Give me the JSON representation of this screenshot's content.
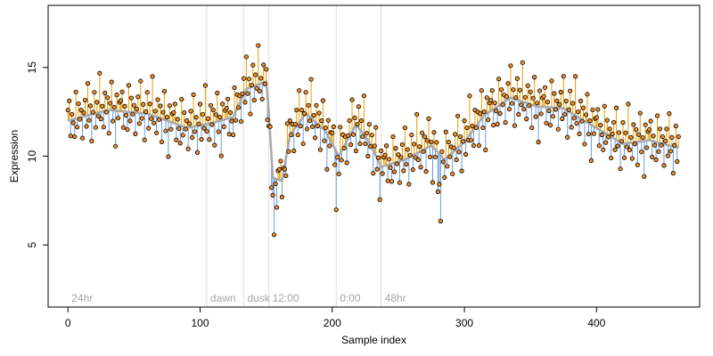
{
  "chart_data": {
    "type": "scatter",
    "title": "",
    "xlabel": "Sample index",
    "ylabel": "Expression",
    "xlim": [
      -15,
      478
    ],
    "ylim": [
      1.5,
      18.5
    ],
    "x_ticks": [
      0,
      100,
      200,
      300,
      400
    ],
    "x_tick_labels": [
      "0",
      "100",
      "200",
      "300",
      "400"
    ],
    "y_ticks": [
      5,
      10,
      15
    ],
    "y_tick_labels": [
      "5",
      "10",
      "15"
    ],
    "grid": false,
    "legend": "none",
    "phase_markers": [
      {
        "label": "24hr",
        "x": 0,
        "line": false
      },
      {
        "label": "dawn",
        "x": 105,
        "line": true
      },
      {
        "label": "dusk",
        "x": 133,
        "line": true
      },
      {
        "label": "12:00",
        "x": 152,
        "line": true
      },
      {
        "label": "0:00",
        "x": 203,
        "line": true
      },
      {
        "label": "48hr",
        "x": 237,
        "line": true
      }
    ],
    "trend_knots": [
      [
        0,
        12.0
      ],
      [
        30,
        12.6
      ],
      [
        60,
        12.4
      ],
      [
        90,
        11.6
      ],
      [
        105,
        11.8
      ],
      [
        125,
        12.2
      ],
      [
        135,
        13.8
      ],
      [
        150,
        14.2
      ],
      [
        152,
        12.5
      ],
      [
        155,
        8.8
      ],
      [
        162,
        8.6
      ],
      [
        168,
        11.2
      ],
      [
        180,
        12.4
      ],
      [
        195,
        11.4
      ],
      [
        205,
        10.0
      ],
      [
        218,
        11.8
      ],
      [
        228,
        10.8
      ],
      [
        237,
        9.4
      ],
      [
        255,
        9.8
      ],
      [
        275,
        10.6
      ],
      [
        285,
        9.8
      ],
      [
        300,
        10.8
      ],
      [
        315,
        12.3
      ],
      [
        335,
        13.3
      ],
      [
        355,
        12.8
      ],
      [
        375,
        12.7
      ],
      [
        395,
        11.8
      ],
      [
        420,
        10.7
      ],
      [
        440,
        10.9
      ],
      [
        460,
        10.5
      ]
    ],
    "point_offsets": [
      0.6,
      1.1,
      -0.9,
      0.3,
      -0.2,
      -1.0,
      1.5,
      -0.5,
      0.8,
      -0.1,
      0.4,
      -1.2,
      0.2,
      0.9,
      -0.6,
      1.8,
      -0.3,
      0.5,
      -1.5,
      0.1,
      1.2,
      -0.8,
      0.6,
      -0.2,
      2.2,
      -0.4,
      0.3,
      -0.9,
      1.0,
      -0.1,
      0.7,
      -1.3,
      0.4,
      1.6,
      -0.6,
      0.2,
      -2.0,
      0.9,
      -0.4,
      0.5
    ],
    "colors": {
      "above_segment": "#E69F00",
      "below_segment": "#6A9BDA",
      "trend": "#A9A9A9",
      "point_fill": "#F28E2B",
      "point_stroke": "#000000",
      "phase_line": "#DDDDDD"
    }
  }
}
